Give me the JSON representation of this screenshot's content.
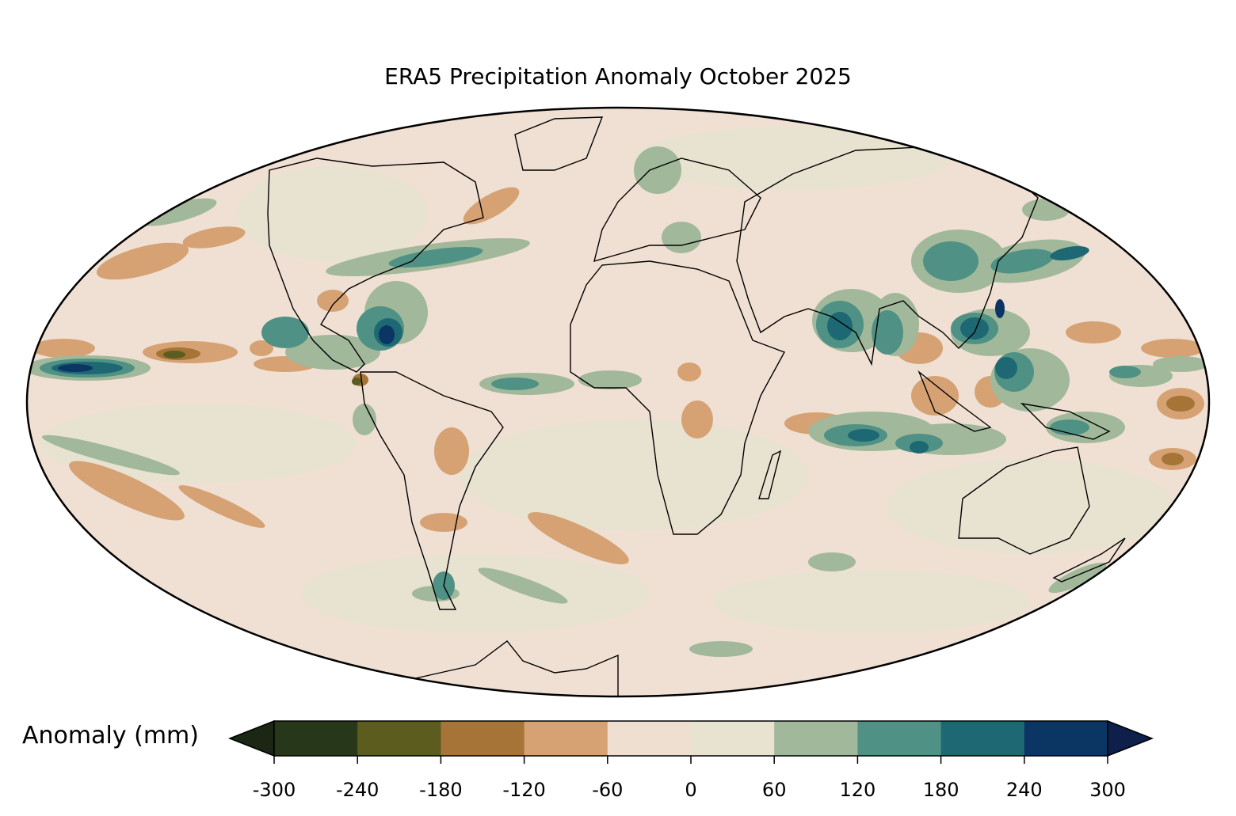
{
  "title": "ERA5 Precipitation Anomaly October 2025",
  "colorbar": {
    "label": "Anomaly (mm)",
    "ticks": [
      "-300",
      "-240",
      "-180",
      "-120",
      "-60",
      "0",
      "60",
      "120",
      "180",
      "240",
      "300"
    ],
    "levels": [
      -300,
      -240,
      -180,
      -120,
      -60,
      0,
      60,
      120,
      180,
      240,
      300
    ],
    "colors": [
      "#27371a",
      "#5d5c1f",
      "#a57436",
      "#d6a274",
      "#efdfd1",
      "#e8e2d1",
      "#a1b89b",
      "#4f9184",
      "#1e6874",
      "#0b3563"
    ],
    "extend_low_color": "#1c2614",
    "extend_high_color": "#0e1f4c"
  },
  "map": {
    "projection": "Mollweide",
    "ocean_background": "#efe0d3",
    "coastline_color": "#000000",
    "border_color": "#8c8c8c"
  }
}
